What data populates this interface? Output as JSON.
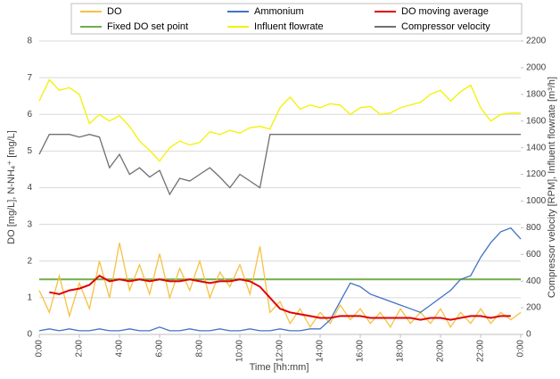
{
  "chart_data": {
    "type": "line",
    "x_label": "Time [hh:mm]",
    "y_label": "DO [mg/L], N-NH₄⁺ [mg/L]",
    "y2_label": "Compressor velocity [RPM], Influent flowrate [m³/h]",
    "x": [
      0,
      0.5,
      1,
      1.5,
      2,
      2.5,
      3,
      3.5,
      4,
      4.5,
      5,
      5.5,
      6,
      6.5,
      7,
      7.5,
      8,
      8.5,
      9,
      9.5,
      10,
      10.5,
      11,
      11.5,
      12,
      12.5,
      13,
      13.5,
      14,
      14.5,
      15,
      15.5,
      16,
      16.5,
      17,
      17.5,
      18,
      18.5,
      19,
      19.5,
      20,
      20.5,
      21,
      21.5,
      22,
      22.5,
      23,
      23.5,
      24
    ],
    "xlim": [
      0,
      24
    ],
    "xticks": [
      {
        "value": 0,
        "label": "0:00"
      },
      {
        "value": 2,
        "label": "2:00"
      },
      {
        "value": 4,
        "label": "4:00"
      },
      {
        "value": 6,
        "label": "6:00"
      },
      {
        "value": 8,
        "label": "8:00"
      },
      {
        "value": 10,
        "label": "10:00"
      },
      {
        "value": 12,
        "label": "12:00"
      },
      {
        "value": 14,
        "label": "14:00"
      },
      {
        "value": 16,
        "label": "16:00"
      },
      {
        "value": 18,
        "label": "18:00"
      },
      {
        "value": 20,
        "label": "20:00"
      },
      {
        "value": 22,
        "label": "22:00"
      },
      {
        "value": 24,
        "label": "0:00"
      }
    ],
    "ylim": [
      0,
      8
    ],
    "yticks": [
      0,
      1,
      2,
      3,
      4,
      5,
      6,
      7,
      8
    ],
    "y2lim": [
      0,
      2200
    ],
    "y2ticks": [
      0,
      200,
      400,
      600,
      800,
      1000,
      1200,
      1400,
      1600,
      1800,
      2000,
      2200
    ],
    "grid": true,
    "series": [
      {
        "name": "DO",
        "color": "#f5c242",
        "values": [
          1.2,
          0.6,
          1.6,
          0.5,
          1.4,
          0.7,
          2.0,
          1.0,
          2.5,
          1.2,
          1.9,
          1.1,
          2.2,
          1.0,
          1.8,
          1.2,
          2.0,
          1.0,
          1.7,
          1.3,
          1.9,
          1.1,
          2.4,
          0.6,
          0.9,
          0.3,
          0.7,
          0.2,
          0.6,
          0.3,
          0.8,
          0.4,
          0.7,
          0.3,
          0.6,
          0.2,
          0.7,
          0.3,
          0.6,
          0.3,
          0.7,
          0.2,
          0.6,
          0.3,
          0.7,
          0.3,
          0.6,
          0.4,
          0.6
        ]
      },
      {
        "name": "Ammonium",
        "color": "#4472c4",
        "values": [
          0.1,
          0.15,
          0.1,
          0.15,
          0.1,
          0.1,
          0.15,
          0.1,
          0.1,
          0.15,
          0.1,
          0.1,
          0.2,
          0.1,
          0.1,
          0.15,
          0.1,
          0.1,
          0.15,
          0.1,
          0.1,
          0.15,
          0.1,
          0.1,
          0.15,
          0.1,
          0.1,
          0.15,
          0.15,
          0.4,
          0.9,
          1.4,
          1.3,
          1.1,
          1.0,
          0.9,
          0.8,
          0.7,
          0.6,
          0.8,
          1.0,
          1.2,
          1.5,
          1.6,
          2.1,
          2.5,
          2.8,
          2.9,
          2.6
        ]
      },
      {
        "name": "DO moving average",
        "color": "#e00000",
        "values": [
          null,
          1.15,
          1.1,
          1.2,
          1.25,
          1.35,
          1.6,
          1.45,
          1.5,
          1.45,
          1.5,
          1.45,
          1.5,
          1.45,
          1.45,
          1.5,
          1.45,
          1.4,
          1.45,
          1.45,
          1.5,
          1.45,
          1.3,
          1.0,
          0.7,
          0.6,
          0.55,
          0.5,
          0.45,
          0.45,
          0.5,
          0.5,
          0.5,
          0.45,
          0.45,
          0.45,
          0.45,
          0.45,
          0.4,
          0.45,
          0.45,
          0.4,
          0.45,
          0.5,
          0.5,
          0.45,
          0.5,
          0.5,
          null
        ]
      },
      {
        "name": "Fixed DO set point",
        "color": "#70ad47",
        "values": [
          1.5,
          1.5,
          1.5,
          1.5,
          1.5,
          1.5,
          1.5,
          1.5,
          1.5,
          1.5,
          1.5,
          1.5,
          1.5,
          1.5,
          1.5,
          1.5,
          1.5,
          1.5,
          1.5,
          1.5,
          1.5,
          1.5,
          1.5,
          1.5,
          1.5,
          1.5,
          1.5,
          1.5,
          1.5,
          1.5,
          1.5,
          1.5,
          1.5,
          1.5,
          1.5,
          1.5,
          1.5,
          1.5,
          1.5,
          1.5,
          1.5,
          1.5,
          1.5,
          1.5,
          1.5,
          1.5,
          1.5,
          1.5,
          1.5
        ]
      },
      {
        "name": "Influent flowrate",
        "color": "#f2f200",
        "axis": "y2",
        "values": [
          1750,
          1910,
          1830,
          1850,
          1800,
          1580,
          1650,
          1600,
          1640,
          1560,
          1450,
          1380,
          1300,
          1400,
          1450,
          1420,
          1440,
          1520,
          1500,
          1530,
          1510,
          1550,
          1560,
          1540,
          1700,
          1780,
          1690,
          1720,
          1700,
          1730,
          1720,
          1650,
          1700,
          1710,
          1650,
          1660,
          1700,
          1720,
          1740,
          1800,
          1830,
          1750,
          1820,
          1870,
          1700,
          1600,
          1650,
          1660,
          1660
        ]
      },
      {
        "name": "Compressor velocity",
        "color": "#707070",
        "axis": "y2",
        "values": [
          1350,
          1500,
          1500,
          1500,
          1480,
          1500,
          1480,
          1250,
          1350,
          1200,
          1250,
          1180,
          1230,
          1050,
          1170,
          1150,
          1200,
          1250,
          1180,
          1100,
          1200,
          1150,
          1100,
          1500,
          1500,
          1500,
          1500,
          1500,
          1500,
          1500,
          1500,
          1500,
          1500,
          1500,
          1500,
          1500,
          1500,
          1500,
          1500,
          1500,
          1500,
          1500,
          1500,
          1500,
          1500,
          1500,
          1500,
          1500,
          1500
        ]
      }
    ]
  }
}
